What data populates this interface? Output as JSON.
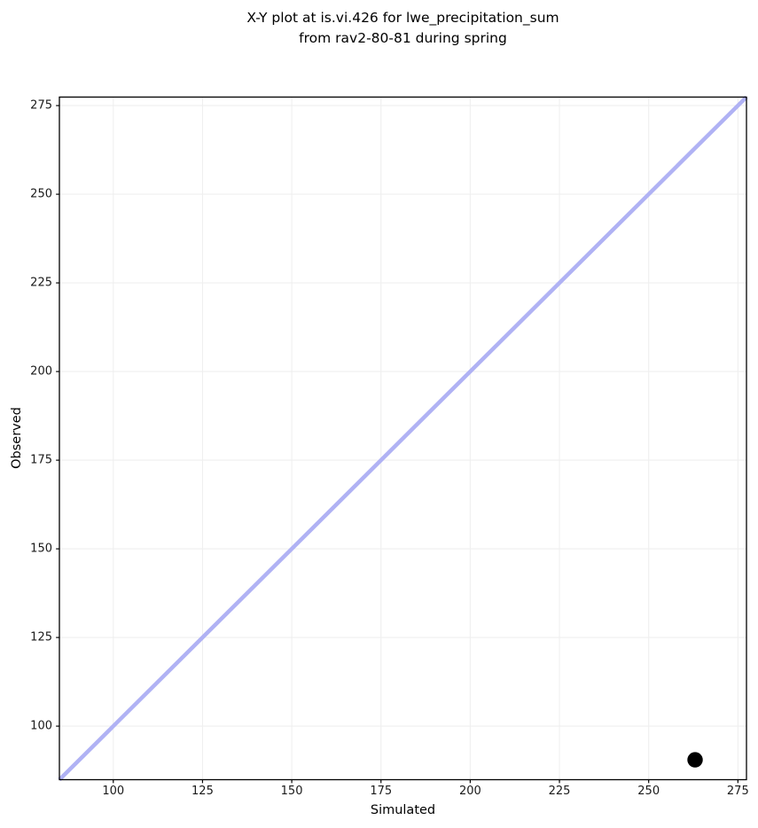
{
  "figure": {
    "title_line1": "X-Y plot at is.vi.426 for lwe_precipitation_sum",
    "title_line2": "from rav2-80-81 during spring"
  },
  "chart_data": {
    "type": "scatter",
    "title": "X-Y plot at is.vi.426 for lwe_precipitation_sum\nfrom rav2-80-81 during spring",
    "xlabel": "Simulated",
    "ylabel": "Observed",
    "xlim": [
      84.9,
      277.4
    ],
    "ylim": [
      84.9,
      277.4
    ],
    "xticks": [
      100,
      125,
      150,
      175,
      200,
      225,
      250,
      275
    ],
    "yticks": [
      100,
      125,
      150,
      175,
      200,
      225,
      250,
      275
    ],
    "grid": true,
    "legend": "none",
    "series": [
      {
        "name": "identity-line",
        "type": "line",
        "color": "#b0b2f4",
        "points": [
          [
            84.9,
            84.9
          ],
          [
            277.4,
            277.4
          ]
        ]
      },
      {
        "name": "observations",
        "type": "scatter",
        "color": "#000000",
        "points": [
          [
            263,
            90.5
          ]
        ]
      }
    ],
    "colors": {
      "background": "#ffffff",
      "grid": "#efefef",
      "spine": "#000000",
      "tick": "#000000"
    }
  }
}
